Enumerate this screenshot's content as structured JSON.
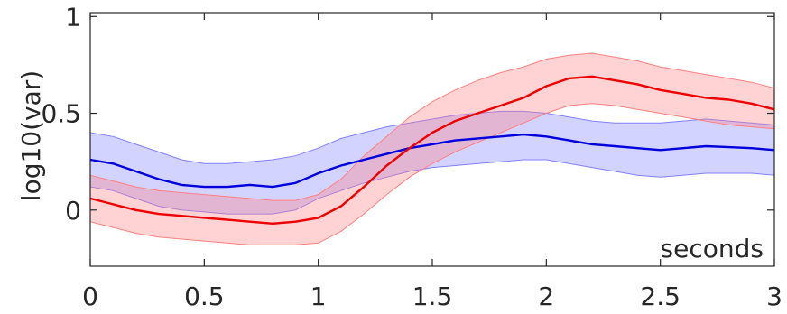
{
  "chart_data": {
    "type": "line",
    "title": "",
    "xlabel": "seconds",
    "ylabel": "log10(var)",
    "xlim": [
      0,
      3
    ],
    "ylim": [
      -0.29,
      1.02
    ],
    "xticks": [
      0,
      0.5,
      1,
      1.5,
      2,
      2.5,
      3
    ],
    "xtick_labels": [
      "0",
      "0.5",
      "1",
      "1.5",
      "2",
      "2.5",
      "3"
    ],
    "yticks": [
      0,
      0.5,
      1
    ],
    "ytick_labels": [
      "0",
      "0.5",
      "1"
    ],
    "grid": false,
    "x": [
      0,
      0.1,
      0.2,
      0.3,
      0.4,
      0.5,
      0.6,
      0.7,
      0.8,
      0.9,
      1.0,
      1.1,
      1.2,
      1.3,
      1.4,
      1.5,
      1.6,
      1.7,
      1.8,
      1.9,
      2.0,
      2.1,
      2.2,
      2.3,
      2.4,
      2.5,
      2.6,
      2.7,
      2.8,
      2.9,
      3.0
    ],
    "series": [
      {
        "color": "#0000dd",
        "band_color": "#8080ff",
        "values": [
          0.26,
          0.24,
          0.2,
          0.16,
          0.13,
          0.12,
          0.12,
          0.13,
          0.12,
          0.14,
          0.19,
          0.23,
          0.26,
          0.29,
          0.32,
          0.34,
          0.36,
          0.37,
          0.38,
          0.39,
          0.38,
          0.36,
          0.34,
          0.33,
          0.32,
          0.31,
          0.32,
          0.33,
          0.325,
          0.32,
          0.31
        ],
        "lower": [
          0.12,
          0.1,
          0.06,
          0.02,
          0.0,
          -0.01,
          -0.02,
          -0.02,
          -0.02,
          0.0,
          0.06,
          0.1,
          0.14,
          0.17,
          0.2,
          0.22,
          0.23,
          0.24,
          0.25,
          0.26,
          0.26,
          0.24,
          0.22,
          0.2,
          0.18,
          0.17,
          0.18,
          0.19,
          0.19,
          0.19,
          0.18
        ],
        "upper": [
          0.4,
          0.38,
          0.34,
          0.3,
          0.26,
          0.24,
          0.24,
          0.25,
          0.26,
          0.28,
          0.32,
          0.37,
          0.4,
          0.43,
          0.45,
          0.47,
          0.49,
          0.5,
          0.51,
          0.51,
          0.5,
          0.48,
          0.46,
          0.45,
          0.45,
          0.45,
          0.46,
          0.47,
          0.46,
          0.45,
          0.44
        ]
      },
      {
        "color": "#ee0000",
        "band_color": "#ff8080",
        "values": [
          0.06,
          0.03,
          0.0,
          -0.02,
          -0.03,
          -0.04,
          -0.05,
          -0.06,
          -0.07,
          -0.06,
          -0.04,
          0.02,
          0.12,
          0.23,
          0.32,
          0.4,
          0.46,
          0.5,
          0.54,
          0.58,
          0.64,
          0.68,
          0.69,
          0.67,
          0.65,
          0.62,
          0.6,
          0.58,
          0.57,
          0.55,
          0.52
        ],
        "lower": [
          -0.06,
          -0.09,
          -0.12,
          -0.14,
          -0.15,
          -0.16,
          -0.17,
          -0.18,
          -0.18,
          -0.18,
          -0.17,
          -0.11,
          -0.02,
          0.08,
          0.17,
          0.24,
          0.3,
          0.35,
          0.4,
          0.45,
          0.5,
          0.54,
          0.55,
          0.54,
          0.52,
          0.5,
          0.48,
          0.46,
          0.44,
          0.43,
          0.42
        ],
        "upper": [
          0.18,
          0.15,
          0.12,
          0.1,
          0.09,
          0.08,
          0.07,
          0.06,
          0.05,
          0.05,
          0.08,
          0.16,
          0.28,
          0.38,
          0.48,
          0.56,
          0.62,
          0.67,
          0.71,
          0.74,
          0.78,
          0.8,
          0.81,
          0.79,
          0.77,
          0.74,
          0.72,
          0.7,
          0.68,
          0.66,
          0.63
        ]
      }
    ]
  }
}
